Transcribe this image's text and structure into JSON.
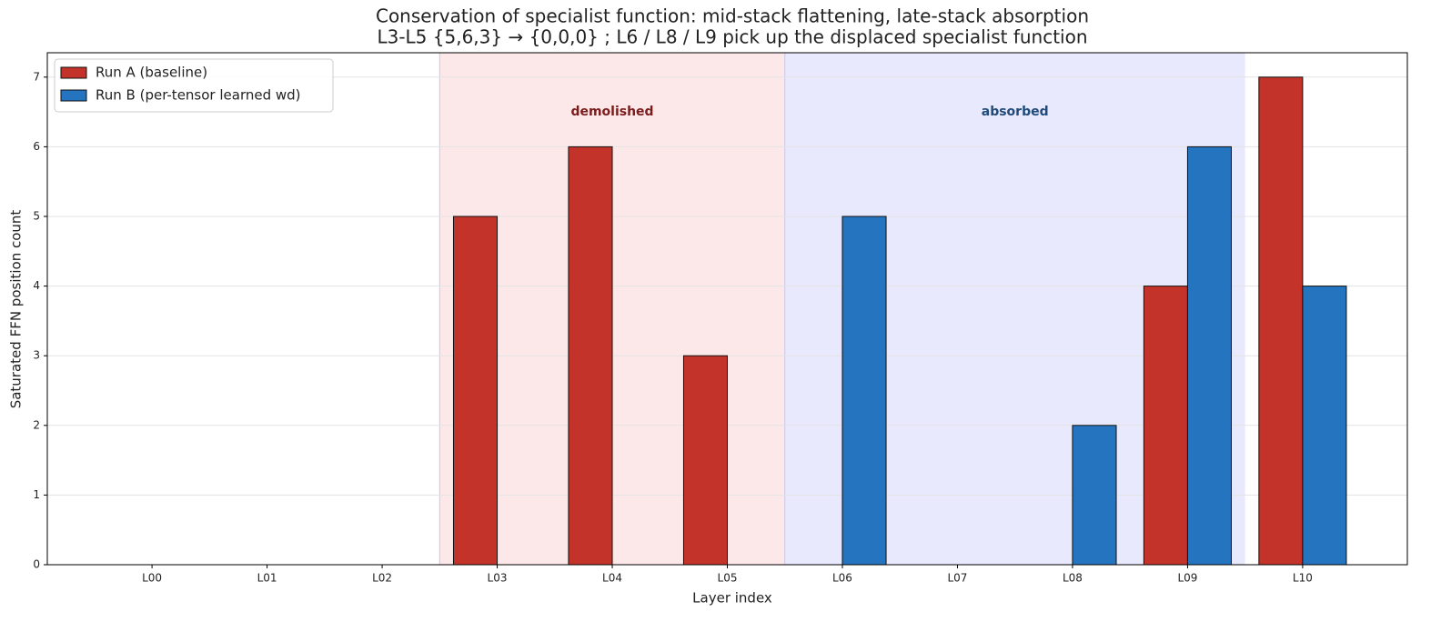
{
  "chart_data": {
    "type": "bar",
    "title": "Conservation of specialist function: mid-stack flattening, late-stack absorption",
    "subtitle": "L3-L5 {5,6,3} → {0,0,0} ; L6 / L8 / L9 pick up the displaced specialist function",
    "x_label": "Layer index",
    "y_label": "Saturated FFN position count",
    "categories": [
      "L00",
      "L01",
      "L02",
      "L03",
      "L04",
      "L05",
      "L06",
      "L07",
      "L08",
      "L09",
      "L10"
    ],
    "series": [
      {
        "name": "Run A (baseline)",
        "color": "#c4332a",
        "values": [
          0,
          0,
          0,
          5,
          6,
          3,
          0,
          0,
          0,
          4,
          7
        ]
      },
      {
        "name": "Run B (per-tensor learned wd)",
        "color": "#2574bf",
        "values": [
          0,
          0,
          0,
          0,
          0,
          0,
          5,
          0,
          2,
          6,
          4
        ]
      }
    ],
    "regions": [
      {
        "label": "demolished",
        "start": 2.5,
        "end": 5.5,
        "color": "#fde8e9",
        "label_color": "#7b1c1c"
      },
      {
        "label": "absorbed",
        "start": 5.5,
        "end": 9.5,
        "color": "#e9e9fd",
        "label_color": "#1f4a7a"
      }
    ],
    "ylim": [
      0,
      7.35
    ],
    "yticks": [
      0,
      1,
      2,
      3,
      4,
      5,
      6,
      7
    ],
    "grid": true,
    "legend": "upper left"
  }
}
